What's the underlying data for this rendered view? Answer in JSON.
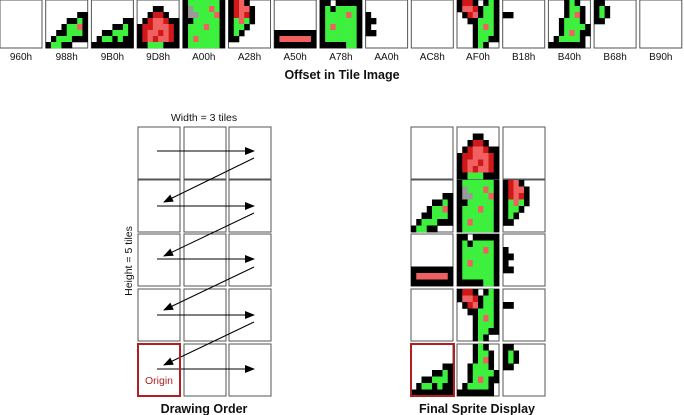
{
  "captions": {
    "offset_caption": "Offset in Tile Image",
    "drawing_order": "Drawing Order",
    "final_display": "Final Sprite Display"
  },
  "dimensions": {
    "width_label": "Width = 3 tiles",
    "height_label": "Height = 5 tiles",
    "origin_label": "Origin"
  },
  "offsets": [
    "960h",
    "988h",
    "9B0h",
    "9D8h",
    "A00h",
    "A28h",
    "A50h",
    "A78h",
    "AA0h",
    "AC8h",
    "AF0h",
    "B18h",
    "B40h",
    "B68h",
    "B90h"
  ],
  "colors": {
    "outline": "#000000",
    "green": "#3df03d",
    "red_light": "#f06060",
    "red_dark": "#d01818",
    "grey": "#9a9a9a",
    "frame": "#555555",
    "origin_frame": "#b02020"
  }
}
